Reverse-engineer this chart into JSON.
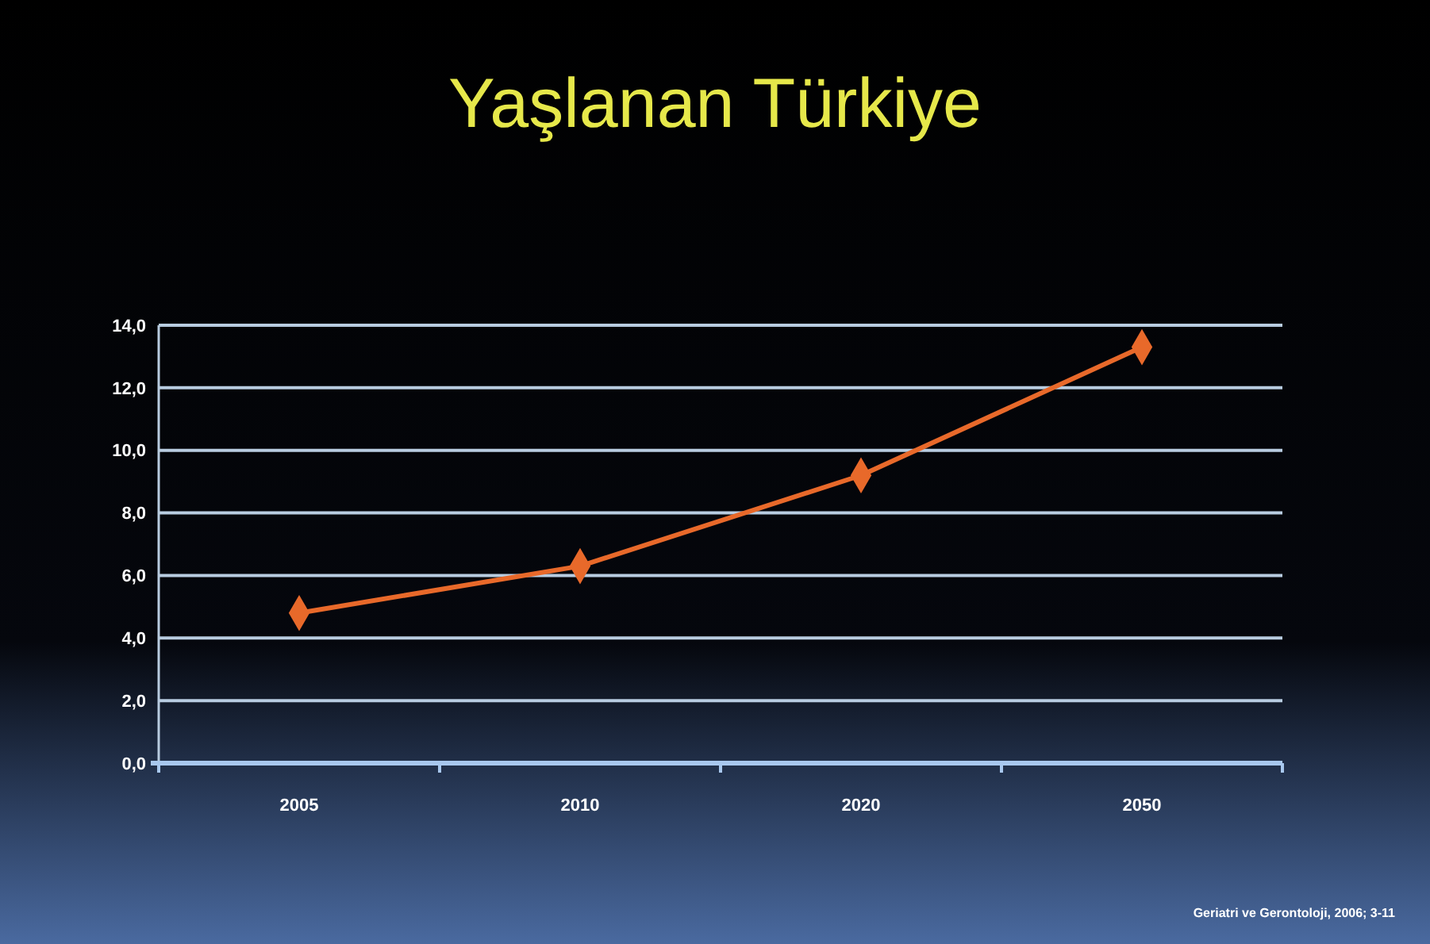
{
  "chart_data": {
    "type": "line",
    "title": "Yaşlanan Türkiye",
    "categories": [
      "2005",
      "2010",
      "2020",
      "2050"
    ],
    "series": [
      {
        "color": "#e8692a",
        "values": [
          4.8,
          6.3,
          9.2,
          13.3
        ]
      }
    ],
    "ylim": [
      0,
      14
    ],
    "yticks": [
      {
        "value": 0,
        "label": "0,0"
      },
      {
        "value": 2,
        "label": "2,0"
      },
      {
        "value": 4,
        "label": "4,0"
      },
      {
        "value": 6,
        "label": "6,0"
      },
      {
        "value": 8,
        "label": "8,0"
      },
      {
        "value": 10,
        "label": "10,0"
      },
      {
        "value": 12,
        "label": "12,0"
      },
      {
        "value": 14,
        "label": "14,0"
      }
    ],
    "grid": "y",
    "marker": "diamond",
    "line_style": "solid",
    "annotations": [
      "Geriatri ve Gerontoloji, 2006; 3-11"
    ]
  }
}
